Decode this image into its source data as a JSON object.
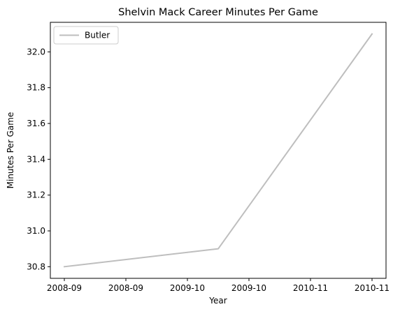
{
  "chart_data": {
    "type": "line",
    "title": "Shelvin Mack Career Minutes Per Game",
    "xlabel": "Year",
    "ylabel": "Minutes Per Game",
    "x_tick_labels": [
      "2008-09",
      "2008-09",
      "2009-10",
      "2009-10",
      "2010-11",
      "2010-11"
    ],
    "y_tick_labels": [
      "30.8",
      "31.0",
      "31.2",
      "31.4",
      "31.6",
      "31.8",
      "32.0"
    ],
    "ylim": [
      30.735,
      32.165
    ],
    "grid": false,
    "legend_position": "top-left",
    "series": [
      {
        "name": "Butler",
        "color": "#bebebe",
        "points": [
          {
            "x": "2008-09",
            "y": 30.8
          },
          {
            "x": "2009-10",
            "y": 30.9
          },
          {
            "x": "2010-11",
            "y": 32.1
          }
        ]
      }
    ]
  }
}
